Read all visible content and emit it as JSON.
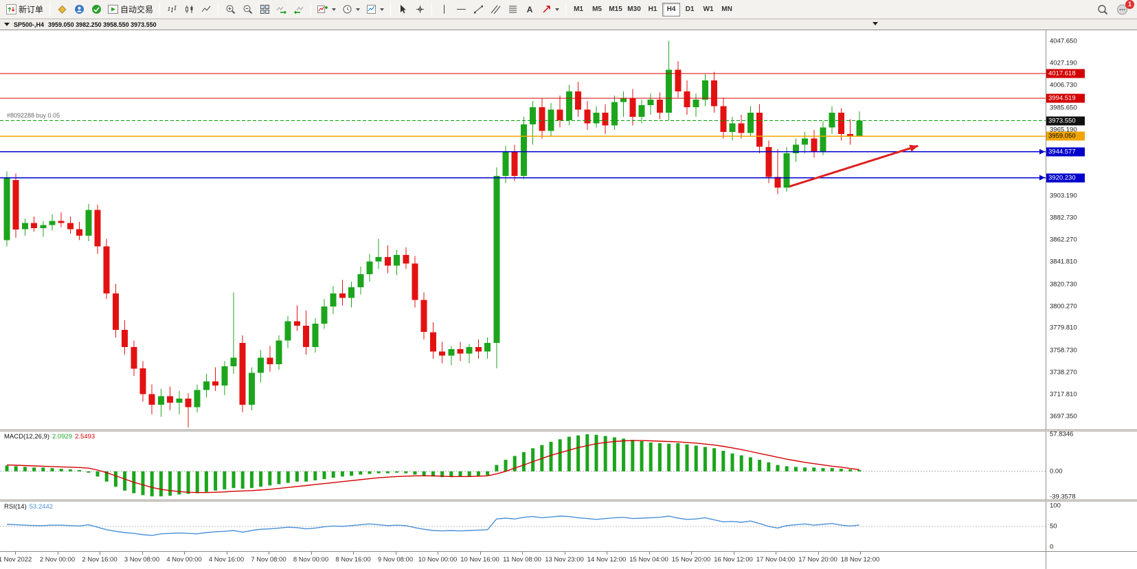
{
  "toolbar": {
    "new_order_label": "新订单",
    "autotrading_label": "自动交易",
    "text_tool_label": "A",
    "timeframes": [
      "M1",
      "M5",
      "M15",
      "M30",
      "H1",
      "H4",
      "D1",
      "W1",
      "MN"
    ],
    "active_timeframe": "H4",
    "notification_count": "1"
  },
  "chart_header": {
    "symbol_period": "SP500-,H4",
    "ohlc": "3959.050 3982.250 3958.550 3973.550"
  },
  "chart_data": {
    "type": "candlestick",
    "title": "SP500-,H4",
    "ylim": [
      3685,
      4058
    ],
    "price_axis_labels": [
      "4047.650",
      "4027.190",
      "4006.730",
      "3985.650",
      "3965.190",
      "3903.190",
      "3882.730",
      "3862.270",
      "3841.810",
      "3820.730",
      "3800.270",
      "3779.810",
      "3758.730",
      "3738.270",
      "3717.810",
      "3697.350"
    ],
    "time_axis_labels": [
      "1 Nov 2022",
      "2 Nov 00:00",
      "2 Nov 16:00",
      "3 Nov 08:00",
      "4 Nov 00:00",
      "4 Nov 16:00",
      "7 Nov 08:00",
      "8 Nov 00:00",
      "8 Nov 16:00",
      "9 Nov 08:00",
      "10 Nov 00:00",
      "10 Nov 16:00",
      "11 Nov 08:00",
      "13 Nov 23:00",
      "14 Nov 12:00",
      "15 Nov 04:00",
      "15 Nov 20:00",
      "16 Nov 12:00",
      "17 Nov 04:00",
      "17 Nov 20:00",
      "18 Nov 12:00"
    ],
    "candles": [
      [
        3862,
        3926,
        3856,
        3920
      ],
      [
        3918,
        3924,
        3864,
        3872
      ],
      [
        3872,
        3882,
        3866,
        3878
      ],
      [
        3878,
        3884,
        3870,
        3873
      ],
      [
        3873,
        3880,
        3865,
        3876
      ],
      [
        3876,
        3886,
        3871,
        3880
      ],
      [
        3880,
        3888,
        3874,
        3878
      ],
      [
        3878,
        3884,
        3868,
        3872
      ],
      [
        3872,
        3879,
        3862,
        3866
      ],
      [
        3866,
        3896,
        3861,
        3890
      ],
      [
        3890,
        3895,
        3849,
        3856
      ],
      [
        3856,
        3863,
        3807,
        3812
      ],
      [
        3812,
        3821,
        3771,
        3778
      ],
      [
        3778,
        3787,
        3755,
        3762
      ],
      [
        3762,
        3768,
        3735,
        3742
      ],
      [
        3742,
        3749,
        3711,
        3718
      ],
      [
        3718,
        3727,
        3699,
        3708
      ],
      [
        3708,
        3723,
        3697,
        3716
      ],
      [
        3716,
        3725,
        3703,
        3710
      ],
      [
        3710,
        3721,
        3699,
        3714
      ],
      [
        3714,
        3719,
        3687,
        3706
      ],
      [
        3706,
        3727,
        3701,
        3722
      ],
      [
        3722,
        3737,
        3715,
        3730
      ],
      [
        3730,
        3743,
        3721,
        3726
      ],
      [
        3726,
        3749,
        3717,
        3744
      ],
      [
        3744,
        3813,
        3737,
        3752
      ],
      [
        3766,
        3773,
        3701,
        3708
      ],
      [
        3708,
        3743,
        3703,
        3738
      ],
      [
        3738,
        3759,
        3729,
        3752
      ],
      [
        3752,
        3763,
        3739,
        3746
      ],
      [
        3746,
        3773,
        3741,
        3768
      ],
      [
        3768,
        3791,
        3761,
        3786
      ],
      [
        3786,
        3801,
        3777,
        3782
      ],
      [
        3782,
        3796,
        3755,
        3762
      ],
      [
        3762,
        3789,
        3757,
        3784
      ],
      [
        3784,
        3807,
        3779,
        3800
      ],
      [
        3800,
        3819,
        3793,
        3812
      ],
      [
        3812,
        3825,
        3801,
        3808
      ],
      [
        3808,
        3823,
        3799,
        3818
      ],
      [
        3818,
        3837,
        3811,
        3830
      ],
      [
        3830,
        3849,
        3823,
        3842
      ],
      [
        3842,
        3863,
        3835,
        3846
      ],
      [
        3846,
        3857,
        3831,
        3838
      ],
      [
        3838,
        3853,
        3829,
        3848
      ],
      [
        3848,
        3855,
        3835,
        3840
      ],
      [
        3840,
        3847,
        3799,
        3806
      ],
      [
        3806,
        3813,
        3769,
        3776
      ],
      [
        3776,
        3785,
        3751,
        3758
      ],
      [
        3758,
        3767,
        3747,
        3754
      ],
      [
        3754,
        3763,
        3745,
        3760
      ],
      [
        3760,
        3767,
        3749,
        3756
      ],
      [
        3756,
        3765,
        3747,
        3762
      ],
      [
        3762,
        3769,
        3751,
        3758
      ],
      [
        3758,
        3771,
        3751,
        3766
      ],
      [
        3766,
        3930,
        3742,
        3922
      ],
      [
        3922,
        3950,
        3915,
        3945
      ],
      [
        3945,
        3951,
        3917,
        3922
      ],
      [
        3922,
        3977,
        3919,
        3970
      ],
      [
        3970,
        3992,
        3951,
        3986
      ],
      [
        3986,
        3994,
        3957,
        3964
      ],
      [
        3964,
        3990,
        3959,
        3984
      ],
      [
        3984,
        3997,
        3967,
        3974
      ],
      [
        3974,
        4007,
        3969,
        4001
      ],
      [
        4001,
        4010,
        3977,
        3984
      ],
      [
        3984,
        3992,
        3965,
        3971
      ],
      [
        3971,
        3987,
        3967,
        3981
      ],
      [
        3981,
        3989,
        3961,
        3969
      ],
      [
        3969,
        3997,
        3965,
        3991
      ],
      [
        3991,
        4001,
        3977,
        3994
      ],
      [
        3994,
        4003,
        3969,
        3977
      ],
      [
        3977,
        3993,
        3971,
        3988
      ],
      [
        3988,
        3999,
        3979,
        3993
      ],
      [
        3993,
        4000,
        3975,
        3981
      ],
      [
        3981,
        4048,
        3974,
        4021
      ],
      [
        4021,
        4029,
        3995,
        4001
      ],
      [
        4001,
        4011,
        3979,
        3986
      ],
      [
        3986,
        3999,
        3977,
        3993
      ],
      [
        3993,
        4017,
        3987,
        4011
      ],
      [
        4011,
        4019,
        3981,
        3987
      ],
      [
        3987,
        3995,
        3957,
        3963
      ],
      [
        3963,
        3977,
        3955,
        3971
      ],
      [
        3971,
        3979,
        3957,
        3962
      ],
      [
        3962,
        3987,
        3959,
        3981
      ],
      [
        3981,
        3989,
        3943,
        3949
      ],
      [
        3949,
        3955,
        3915,
        3921
      ],
      [
        3921,
        3947,
        3905,
        3911
      ],
      [
        3911,
        3949,
        3907,
        3943
      ],
      [
        3943,
        3957,
        3935,
        3951
      ],
      [
        3951,
        3963,
        3943,
        3957
      ],
      [
        3957,
        3965,
        3939,
        3945
      ],
      [
        3945,
        3973,
        3941,
        3967
      ],
      [
        3967,
        3987,
        3961,
        3981
      ],
      [
        3981,
        3985,
        3955,
        3961
      ],
      [
        3961,
        3975,
        3951,
        3959
      ],
      [
        3959.05,
        3982.25,
        3958.55,
        3973.55
      ]
    ],
    "colors": {
      "bull": "#1ca51c",
      "bear": "#e31212",
      "hline_red": "#d40000",
      "hline_blue": "#0000cc",
      "price_line": "#00a000",
      "order_line": "#f0a500",
      "arrow": "#dd2222",
      "macd_hist": "#1ca51c",
      "macd_signal": "#d40000",
      "rsi_line": "#4a90d9"
    },
    "hlines": [
      {
        "price": 4017.618,
        "label": "4017.618",
        "color": "#d40000",
        "style": "solid",
        "box_bg": "#d40000",
        "box_fg": "#ffffff"
      },
      {
        "price": 3994.519,
        "label": "3994.519",
        "color": "#d40000",
        "style": "solid",
        "box_bg": "#d40000",
        "box_fg": "#ffffff"
      },
      {
        "price": 3973.55,
        "label": "3973.550",
        "color": "#00a000",
        "style": "dashed",
        "box_bg": "#111111",
        "box_fg": "#ffffff"
      },
      {
        "price": 3959.05,
        "label": "3959.050",
        "color": "#f0a500",
        "style": "solid",
        "box_bg": "#f0a500",
        "box_fg": "#000000"
      },
      {
        "price": 3944.577,
        "label": "3944.577",
        "color": "#0000cc",
        "style": "solid",
        "box_bg": "#0000cc",
        "box_fg": "#ffffff"
      },
      {
        "price": 3920.23,
        "label": "3920.230",
        "color": "#0000cc",
        "style": "solid",
        "box_bg": "#0000cc",
        "box_fg": "#ffffff"
      }
    ],
    "trade_label": "#8092288 buy 0.05",
    "arrow": {
      "x1_frac": 0.755,
      "price1": 3912,
      "x2_frac": 0.878,
      "price2": 3950
    },
    "macd": {
      "title": "MACD(12,26,9)",
      "value_main": "2.0929",
      "value_signal": "2.5493",
      "axis_labels": [
        "57.8346",
        "0.00",
        "-39.3578"
      ],
      "ylim": [
        -44,
        62
      ],
      "histogram": [
        9,
        8,
        7,
        6,
        6,
        5,
        4,
        3,
        2,
        -2,
        -8,
        -16,
        -24,
        -30,
        -34,
        -37,
        -39,
        -39,
        -38,
        -36,
        -35,
        -34,
        -32,
        -30,
        -28,
        -26,
        -27,
        -26,
        -24,
        -22,
        -20,
        -18,
        -16,
        -16,
        -14,
        -12,
        -10,
        -8,
        -7,
        -5,
        -4,
        -3,
        -3,
        -2,
        -3,
        -5,
        -7,
        -8,
        -9,
        -9,
        -8,
        -8,
        -7,
        -6,
        10,
        18,
        24,
        30,
        36,
        41,
        46,
        50,
        54,
        56,
        57.8,
        57,
        55,
        53,
        51,
        49,
        47,
        45,
        44,
        43,
        44,
        42,
        40,
        38,
        36,
        32,
        28,
        25,
        22,
        18,
        14,
        10,
        8,
        7,
        6,
        6,
        5,
        5,
        4,
        3,
        2.09
      ],
      "signal": [
        10,
        9.5,
        9,
        8.5,
        8,
        7.5,
        7,
        6.5,
        6,
        5,
        2,
        -2,
        -7,
        -12,
        -17,
        -21,
        -25,
        -28,
        -30,
        -31.5,
        -32.5,
        -33,
        -33,
        -32.5,
        -32,
        -31,
        -30.5,
        -30,
        -29,
        -28,
        -26.5,
        -25,
        -23.5,
        -22,
        -20.5,
        -19,
        -17.5,
        -16,
        -14.5,
        -13,
        -11.5,
        -10,
        -9,
        -8,
        -7.5,
        -7,
        -7,
        -7,
        -7.5,
        -8,
        -8,
        -8,
        -7.5,
        -7,
        -4,
        0,
        5,
        10,
        15,
        20,
        25,
        29,
        33,
        37,
        40,
        43,
        45,
        46.5,
        47.5,
        48,
        48,
        47.5,
        47,
        46.5,
        46,
        45,
        44,
        42.5,
        41,
        39,
        36.5,
        34,
        31,
        28,
        25,
        22,
        19,
        16.5,
        14,
        12,
        10,
        8,
        6.5,
        4.5,
        2.55
      ]
    },
    "rsi": {
      "title": "RSI(14)",
      "value": "53.2442",
      "axis_labels": [
        "100",
        "50",
        "0"
      ],
      "level": 50,
      "ylim": [
        0,
        100
      ],
      "values": [
        55,
        54,
        53,
        52,
        52,
        53,
        53,
        52,
        51,
        54,
        48,
        42,
        38,
        35,
        33,
        30,
        28,
        32,
        33,
        34,
        33,
        32,
        35,
        37,
        38,
        40,
        36,
        40,
        43,
        44,
        46,
        48,
        47,
        44,
        46,
        49,
        51,
        50,
        52,
        54,
        56,
        54,
        52,
        53,
        52,
        47,
        43,
        40,
        39,
        40,
        39,
        40,
        41,
        42,
        68,
        70,
        68,
        72,
        74,
        71,
        73,
        75,
        74,
        71,
        69,
        67,
        69,
        71,
        72,
        69,
        70,
        71,
        72,
        75,
        70,
        67,
        68,
        71,
        66,
        61,
        62,
        60,
        63,
        57,
        50,
        46,
        52,
        54,
        56,
        53,
        55,
        57,
        53,
        51,
        53.24
      ]
    }
  }
}
